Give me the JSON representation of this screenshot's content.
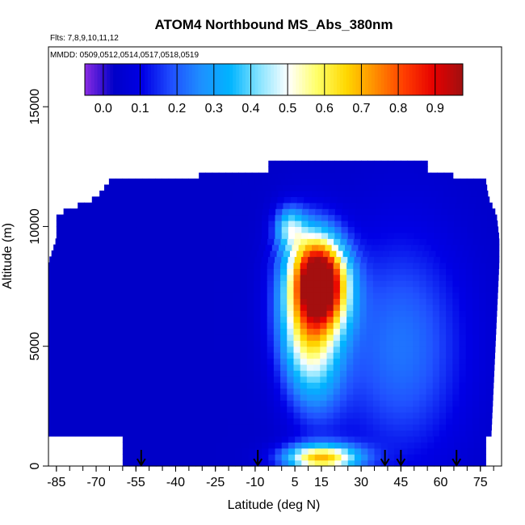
{
  "chart_data": {
    "type": "heatmap",
    "title": "ATOM4 Northbound MS_Abs_380nm",
    "flights_note": "Flts: 7,8,9,10,11,12",
    "dates_note": "MMDD: 0509,0512,0514,0517,0518,0519",
    "xlabel": "Latitude (deg N)",
    "ylabel": "Altitude (m)",
    "xlim": [
      -88,
      83
    ],
    "ylim": [
      0,
      17500
    ],
    "x_ticks": [
      -85,
      -70,
      -55,
      -40,
      -25,
      -10,
      5,
      15,
      30,
      45,
      60,
      75
    ],
    "x_tick_labels": [
      "-85",
      "-70",
      "-55",
      "-40",
      "-25",
      "-10",
      "5",
      "15",
      "30",
      "45",
      "60",
      "75"
    ],
    "y_ticks": [
      0,
      5000,
      10000,
      15000
    ],
    "y_tick_labels": [
      "0",
      "5000",
      "10000",
      "15000"
    ],
    "colorbar": {
      "range": [
        -0.05,
        0.975
      ],
      "tick_values": [
        0.0,
        0.1,
        0.2,
        0.3,
        0.4,
        0.5,
        0.6,
        0.7,
        0.8,
        0.9
      ],
      "tick_labels": [
        "0.0",
        "0.1",
        "0.2",
        "0.3",
        "0.4",
        "0.5",
        "0.6",
        "0.7",
        "0.8",
        "0.9"
      ],
      "colors": [
        "#8a2be2",
        "#0000c8",
        "#0000e6",
        "#2050ff",
        "#1e90ff",
        "#00b4ff",
        "#87e4ff",
        "#ffffff",
        "#ffff66",
        "#ffd700",
        "#ff8c00",
        "#ff3c00",
        "#e60000",
        "#a01010"
      ]
    },
    "flight_arrow_latitudes": [
      -53,
      -9,
      39,
      45,
      66
    ],
    "field_extent": [
      {
        "y": 0,
        "lat_min": -60,
        "lat_max": 77
      },
      {
        "y": 1200,
        "lat_min": -60,
        "lat_max": 77
      },
      {
        "y": 1300,
        "lat_min": -88,
        "lat_max": 79
      },
      {
        "y": 8500,
        "lat_min": -88,
        "lat_max": 82
      },
      {
        "y": 9500,
        "lat_min": -85,
        "lat_max": 82
      },
      {
        "y": 10500,
        "lat_min": -85,
        "lat_max": 81
      },
      {
        "y": 11200,
        "lat_min": -70,
        "lat_max": 78
      },
      {
        "y": 11900,
        "lat_min": -65,
        "lat_max": 77
      },
      {
        "y": 12300,
        "lat_min": -5,
        "lat_max": 55
      },
      {
        "y": 12850,
        "lat_min": -5,
        "lat_max": 55
      }
    ],
    "plumes": [
      {
        "lat": 15,
        "alt": 7800,
        "lat_sd": 7,
        "alt_sd": 1300,
        "value": 0.92,
        "tilt": -1800
      },
      {
        "lat": 10,
        "alt": 5800,
        "lat_sd": 8,
        "alt_sd": 2200,
        "value": 0.55,
        "tilt": -1800
      },
      {
        "lat": 15,
        "alt": 350,
        "lat_sd": 10,
        "alt_sd": 400,
        "value": 0.62,
        "tilt": 0
      },
      {
        "lat": 3,
        "alt": 10000,
        "lat_sd": 4,
        "alt_sd": 600,
        "value": 0.3,
        "tilt": 0
      },
      {
        "lat": 45,
        "alt": 5000,
        "lat_sd": 18,
        "alt_sd": 3500,
        "value": 0.2,
        "tilt": 0
      }
    ],
    "background_value": 0.03
  }
}
